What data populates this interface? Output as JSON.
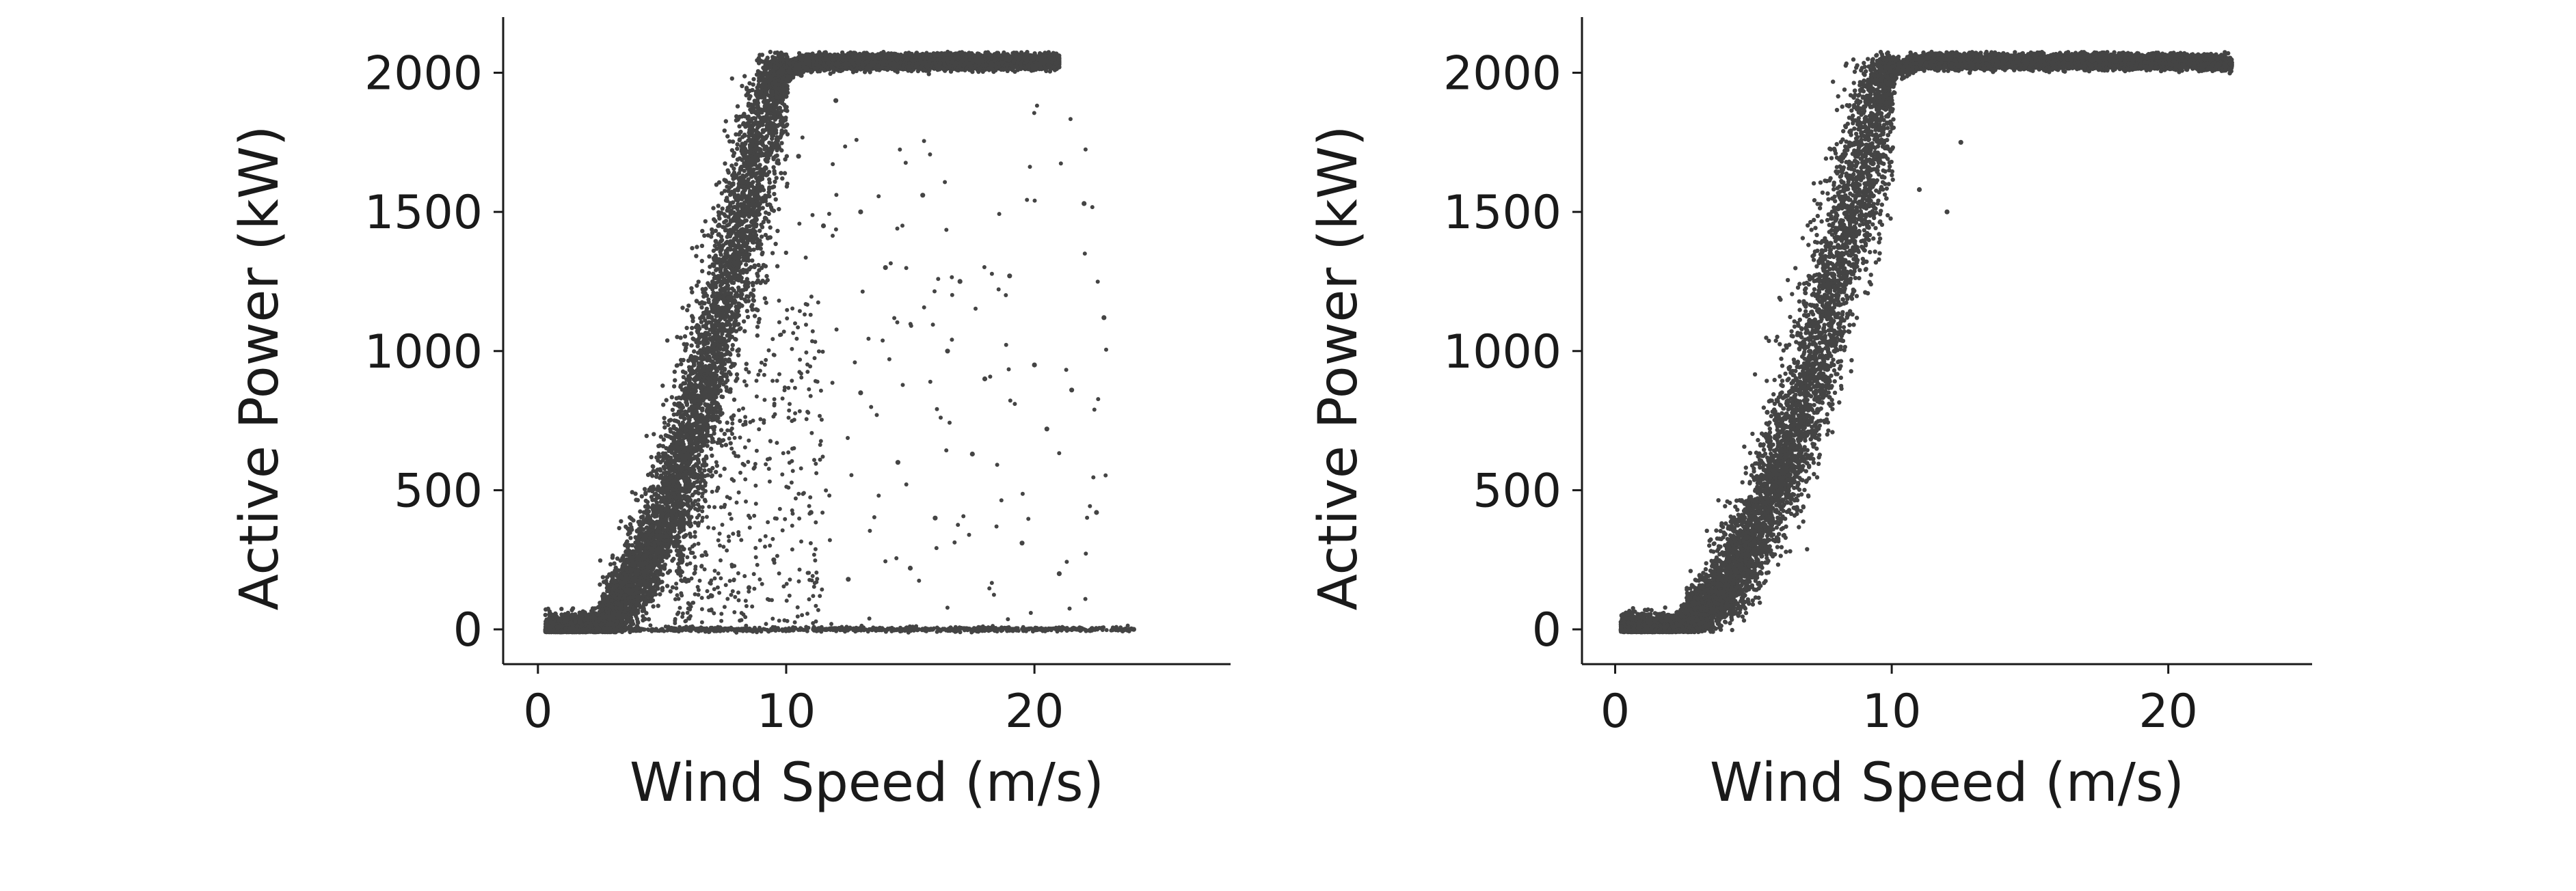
{
  "chart_data": [
    {
      "type": "scatter",
      "title": "",
      "xlabel": "Wind Speed (m/s)",
      "ylabel": "Active Power (kW)",
      "xlim": [
        -1.4,
        27.9
      ],
      "ylim": [
        -125,
        2200
      ],
      "xticks": [
        0,
        10,
        20
      ],
      "yticks": [
        0,
        500,
        1000,
        1500,
        2000
      ],
      "grid": false,
      "legend": "none",
      "marker_color": "#444444",
      "series": [
        {
          "values": [
            [
              0.3,
              0
            ],
            [
              1.0,
              0
            ],
            [
              1.8,
              0
            ],
            [
              2.5,
              20
            ],
            [
              3.0,
              60
            ],
            [
              3.5,
              120
            ],
            [
              4.0,
              190
            ],
            [
              4.5,
              280
            ],
            [
              5.0,
              380
            ],
            [
              5.5,
              500
            ],
            [
              6.0,
              640
            ],
            [
              6.5,
              800
            ],
            [
              7.0,
              980
            ],
            [
              7.5,
              1160
            ],
            [
              8.0,
              1360
            ],
            [
              8.5,
              1560
            ],
            [
              9.0,
              1760
            ],
            [
              9.5,
              1940
            ],
            [
              10.0,
              2010
            ],
            [
              11.0,
              2040
            ],
            [
              12.0,
              2040
            ],
            [
              14.0,
              2040
            ],
            [
              16.0,
              2040
            ],
            [
              18.0,
              2040
            ],
            [
              20.0,
              2040
            ],
            [
              21.0,
              2040
            ],
            [
              3.0,
              0
            ],
            [
              5.0,
              0
            ],
            [
              8.0,
              0
            ],
            [
              12.0,
              0
            ],
            [
              15.0,
              0
            ],
            [
              18.0,
              0
            ],
            [
              21.0,
              0
            ],
            [
              24.0,
              0
            ],
            [
              10.5,
              1700
            ],
            [
              11.5,
              1450
            ],
            [
              12.0,
              1900
            ],
            [
              13.0,
              1500
            ],
            [
              14.0,
              1300
            ],
            [
              15.5,
              1560
            ],
            [
              16.5,
              1000
            ],
            [
              17.0,
              1250
            ],
            [
              18.0,
              900
            ],
            [
              19.0,
              1270
            ],
            [
              20.0,
              950
            ],
            [
              20.5,
              720
            ],
            [
              21.0,
              200
            ],
            [
              21.5,
              860
            ],
            [
              22.0,
              1530
            ],
            [
              22.5,
              420
            ],
            [
              22.8,
              1120
            ],
            [
              13.0,
              850
            ],
            [
              14.5,
              600
            ],
            [
              16.0,
              400
            ],
            [
              17.5,
              630
            ],
            [
              12.5,
              180
            ],
            [
              15.0,
              220
            ],
            [
              19.5,
              310
            ],
            [
              11.0,
              420
            ],
            [
              9.5,
              250
            ],
            [
              8.5,
              150
            ],
            [
              7.0,
              120
            ]
          ]
        }
      ]
    },
    {
      "type": "scatter",
      "title": "",
      "xlabel": "Wind Speed (m/s)",
      "ylabel": "Active Power (kW)",
      "xlim": [
        -1.2,
        25.2
      ],
      "ylim": [
        -125,
        2200
      ],
      "xticks": [
        0,
        10,
        20
      ],
      "yticks": [
        0,
        500,
        1000,
        1500,
        2000
      ],
      "grid": false,
      "legend": "none",
      "marker_color": "#444444",
      "series": [
        {
          "values": [
            [
              0.2,
              0
            ],
            [
              1.0,
              0
            ],
            [
              1.8,
              0
            ],
            [
              2.5,
              20
            ],
            [
              3.0,
              50
            ],
            [
              3.5,
              100
            ],
            [
              4.0,
              160
            ],
            [
              4.5,
              240
            ],
            [
              5.0,
              330
            ],
            [
              5.5,
              440
            ],
            [
              6.0,
              570
            ],
            [
              6.5,
              720
            ],
            [
              7.0,
              890
            ],
            [
              7.5,
              1080
            ],
            [
              8.0,
              1280
            ],
            [
              8.5,
              1480
            ],
            [
              9.0,
              1680
            ],
            [
              9.5,
              1880
            ],
            [
              10.0,
              2010
            ],
            [
              11.0,
              2040
            ],
            [
              12.0,
              2040
            ],
            [
              14.0,
              2040
            ],
            [
              16.0,
              2040
            ],
            [
              18.0,
              2040
            ],
            [
              20.0,
              2040
            ],
            [
              21.5,
              2040
            ],
            [
              22.3,
              2030
            ],
            [
              11.0,
              1580
            ],
            [
              12.0,
              1500
            ],
            [
              12.5,
              1750
            ],
            [
              5.5,
              780
            ]
          ]
        }
      ]
    }
  ]
}
